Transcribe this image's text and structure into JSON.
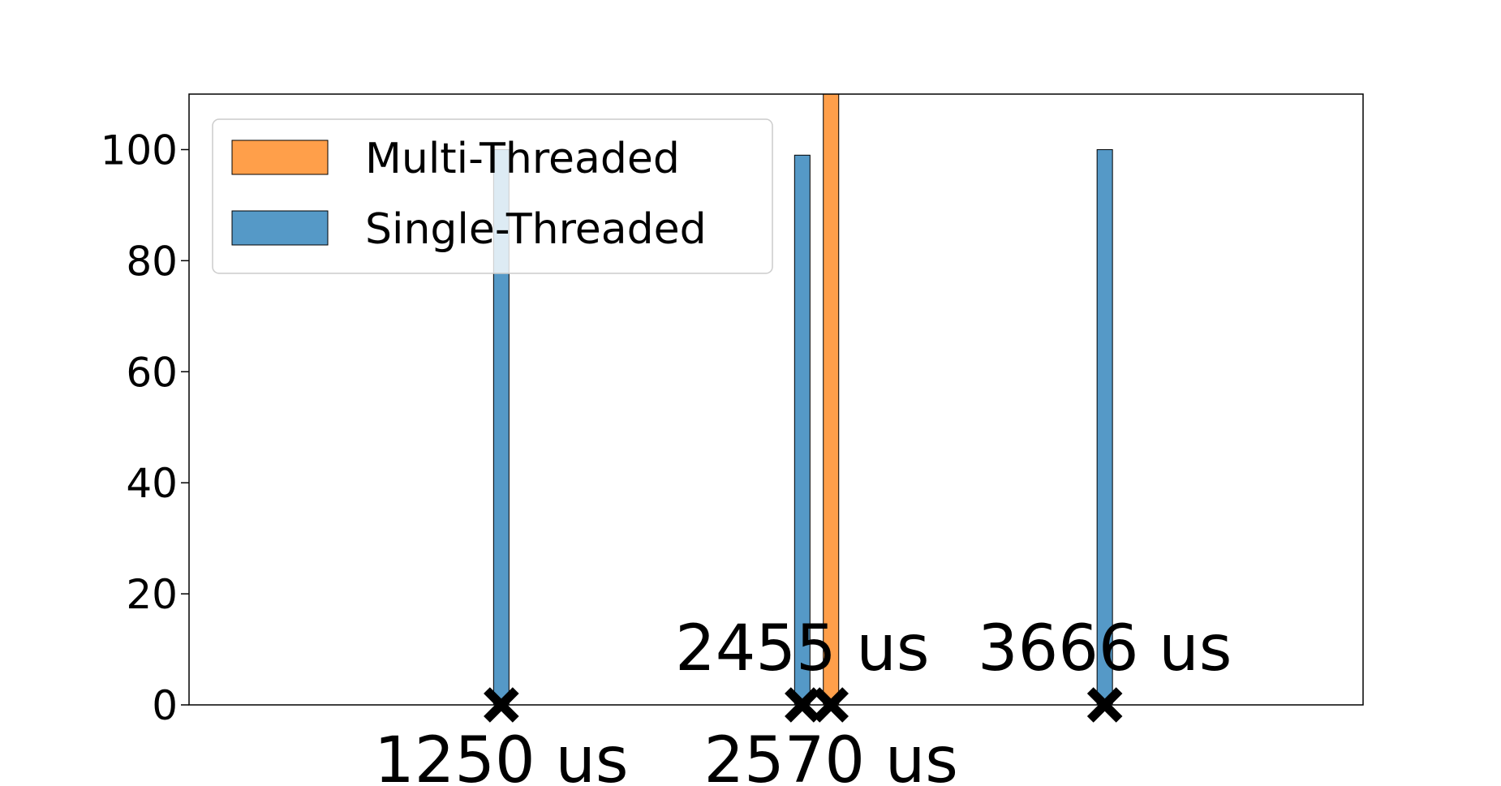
{
  "chart_data": {
    "type": "bar",
    "xlim": [
      0,
      4700
    ],
    "ylim": [
      0,
      110
    ],
    "yticks": [
      0,
      20,
      40,
      60,
      80,
      100
    ],
    "ytick_labels": [
      "0",
      "20",
      "40",
      "60",
      "80",
      "100"
    ],
    "grid": false,
    "legend": "top-left",
    "series": [
      {
        "name": "Multi-Threaded",
        "color": "#ff9f4a",
        "bars": [
          {
            "x": 2570,
            "y": 110
          }
        ]
      },
      {
        "name": "Single-Threaded",
        "color": "#5599c7",
        "bars": [
          {
            "x": 1250,
            "y": 100
          },
          {
            "x": 2455,
            "y": 99
          },
          {
            "x": 3666,
            "y": 100
          }
        ]
      }
    ],
    "markers": [
      {
        "x": 1250,
        "y": 0
      },
      {
        "x": 2455,
        "y": 0
      },
      {
        "x": 2570,
        "y": 0
      },
      {
        "x": 3666,
        "y": 0
      }
    ],
    "annotations": [
      {
        "text": "1250 us",
        "x": 1250,
        "pos": "below"
      },
      {
        "text": "2455 us",
        "x": 2455,
        "pos": "above"
      },
      {
        "text": "2570 us",
        "x": 2570,
        "pos": "below"
      },
      {
        "text": "3666 us",
        "x": 3666,
        "pos": "above"
      }
    ]
  }
}
